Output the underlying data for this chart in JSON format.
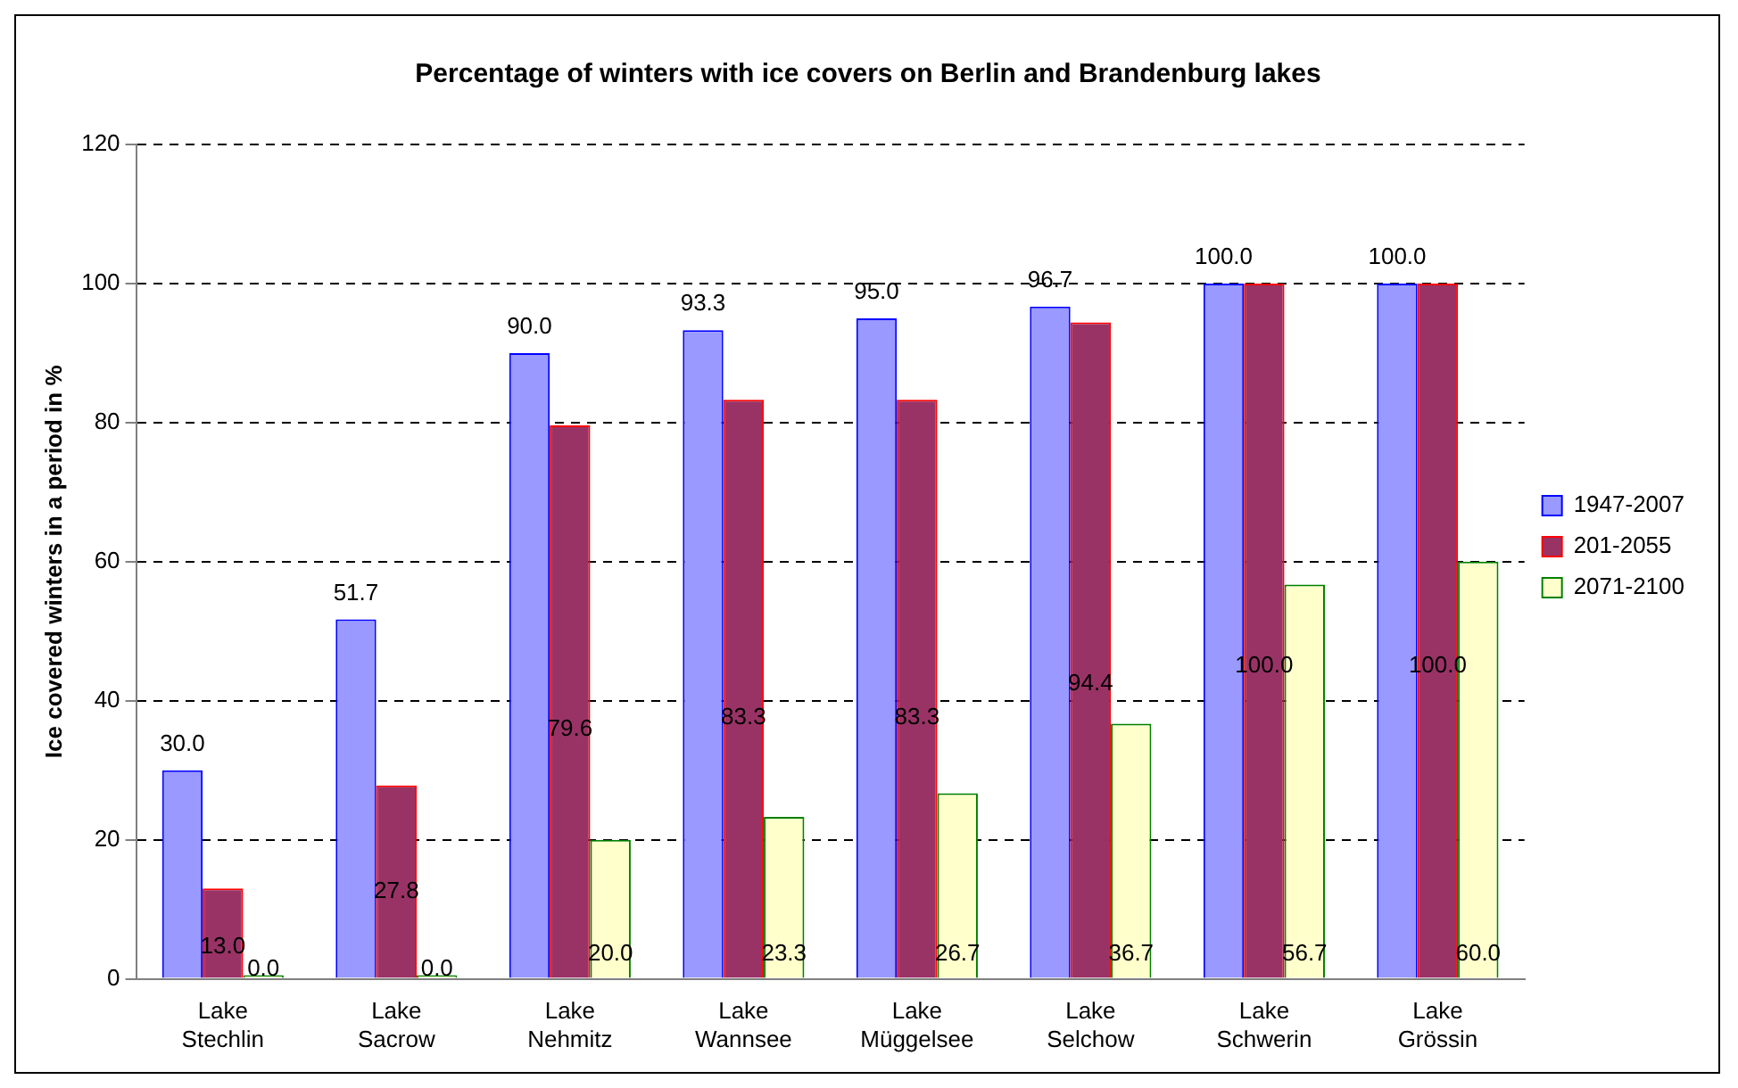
{
  "chart_data": {
    "type": "bar",
    "title": "Percentage of winters with ice covers on Berlin and Brandenburg lakes",
    "ylabel": "Ice covered winters in a period in %",
    "categories": [
      "Lake Stechlin",
      "Lake Sacrow",
      "Lake Nehmitz",
      "Lake Wannsee",
      "Lake Müggelsee",
      "Lake Selchow",
      "Lake Schwerin",
      "Lake Grössin"
    ],
    "series": [
      {
        "name": "1947-2007",
        "color": "#9999ff",
        "values": [
          30.0,
          51.7,
          90.0,
          93.3,
          95.0,
          96.7,
          100.0,
          100.0
        ],
        "value_labels": [
          "30.0",
          "51.7",
          "90.0",
          "93.3",
          "95.0",
          "96.7",
          "100.0",
          "100.0"
        ]
      },
      {
        "name": "201-2055",
        "color": "#993366",
        "values": [
          13.0,
          27.8,
          79.6,
          83.3,
          83.3,
          94.4,
          100.0,
          100.0
        ],
        "value_labels": [
          "13.0",
          "27.8",
          "79.6",
          "83.3",
          "83.3",
          "94.4",
          "100.0",
          "100.0"
        ]
      },
      {
        "name": "2071-2100",
        "color": "#ffffcc",
        "values": [
          0.0,
          0.0,
          20.0,
          23.3,
          26.7,
          36.7,
          56.7,
          60.0
        ],
        "value_labels": [
          "0.0",
          "0.0",
          "20.0",
          "23.3",
          "26.7",
          "36.7",
          "56.7",
          "60.0"
        ]
      }
    ],
    "ylim": [
      0,
      120
    ],
    "yticks": [
      0,
      20,
      40,
      60,
      80,
      100,
      120
    ],
    "grid": "y",
    "legend": "right"
  }
}
